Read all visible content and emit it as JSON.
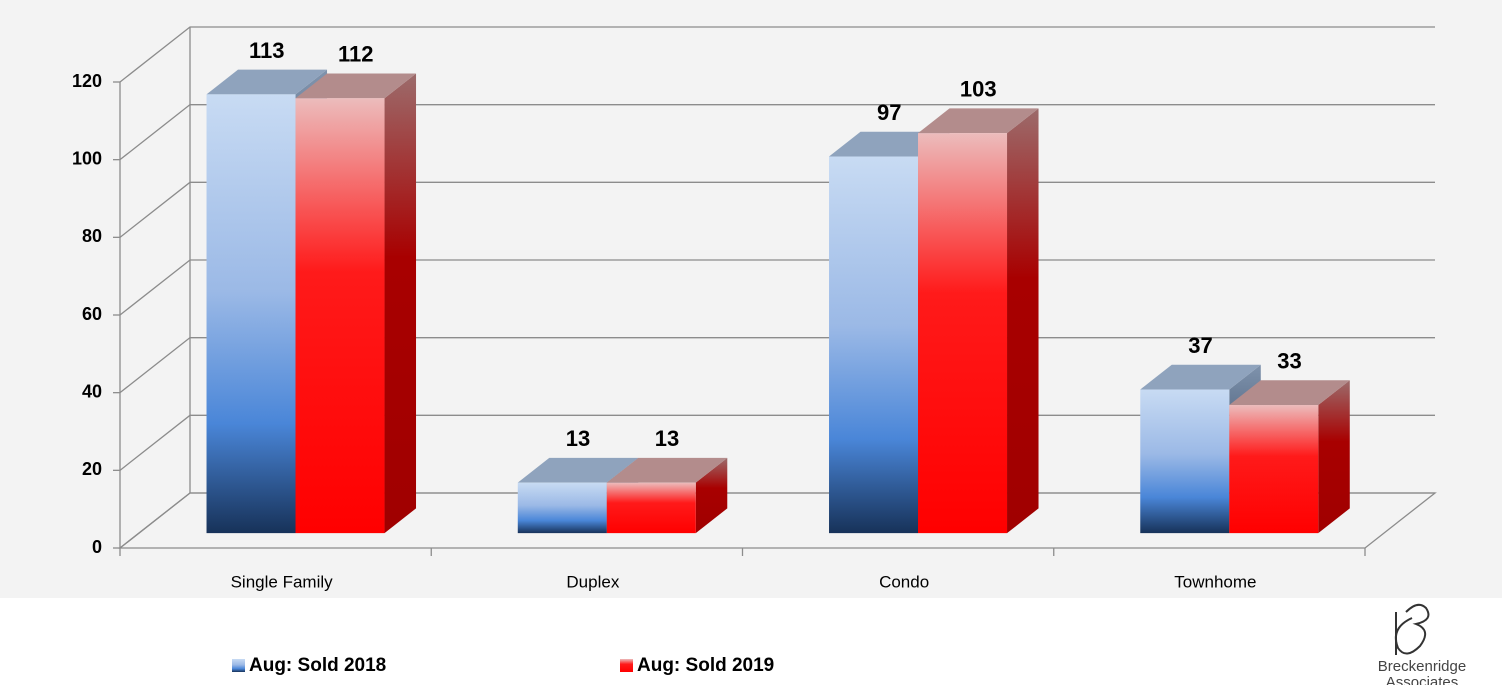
{
  "chart_data": {
    "type": "bar3d",
    "categories": [
      "Single Family",
      "Duplex",
      "Condo",
      "Townhome"
    ],
    "series": [
      {
        "name": "Aug: Sold 2018",
        "color": "#4a86d8",
        "values": [
          113,
          13,
          97,
          37
        ]
      },
      {
        "name": "Aug: Sold 2019",
        "color": "#ff0000",
        "values": [
          112,
          13,
          103,
          33
        ]
      }
    ],
    "ylim": [
      0,
      120
    ],
    "yticks": [
      0,
      20,
      40,
      60,
      80,
      100,
      120
    ],
    "grid": true,
    "legend": "bottom"
  },
  "logo": {
    "line1": "Breckenridge",
    "line2": "Associates"
  }
}
